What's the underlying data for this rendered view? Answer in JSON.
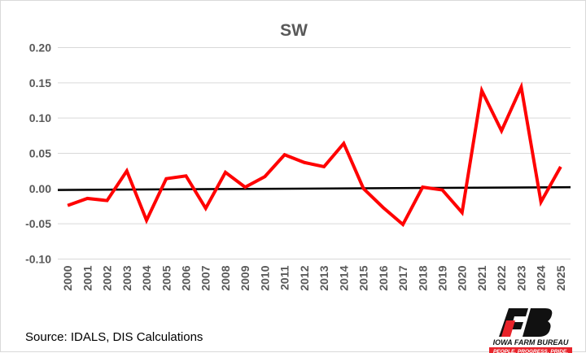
{
  "chart_data": {
    "type": "line",
    "title": "SW",
    "xlabel": "",
    "ylabel": "",
    "categories": [
      "2000",
      "2001",
      "2002",
      "2003",
      "2004",
      "2005",
      "2006",
      "2007",
      "2008",
      "2009",
      "2010",
      "2011",
      "2012",
      "2013",
      "2014",
      "2015",
      "2016",
      "2017",
      "2018",
      "2019",
      "2020",
      "2021",
      "2022",
      "2023",
      "2024",
      "2025"
    ],
    "series": [
      {
        "name": "SW",
        "color": "#ff0000",
        "values": [
          -0.024,
          -0.014,
          -0.017,
          0.025,
          -0.045,
          0.014,
          0.018,
          -0.028,
          0.023,
          0.002,
          0.017,
          0.048,
          0.037,
          0.031,
          0.064,
          0.0,
          -0.027,
          -0.051,
          0.002,
          -0.002,
          -0.034,
          0.139,
          0.082,
          0.144,
          -0.019,
          0.031
        ]
      },
      {
        "name": "Trend",
        "color": "#000000",
        "values_endpoints": [
          -0.002,
          0.002
        ]
      }
    ],
    "ylim": [
      -0.1,
      0.2
    ],
    "yticks": [
      "0.20",
      "0.15",
      "0.10",
      "0.05",
      "0.00",
      "-0.05",
      "-0.10"
    ],
    "ytick_values": [
      0.2,
      0.15,
      0.1,
      0.05,
      0.0,
      -0.05,
      -0.1
    ],
    "grid": true,
    "legend": "none"
  },
  "source": "Source: IDALS, DIS Calculations",
  "logo": {
    "name": "IOWA FARM BUREAU",
    "tagline": "PEOPLE. PROGRESS. PRIDE."
  }
}
